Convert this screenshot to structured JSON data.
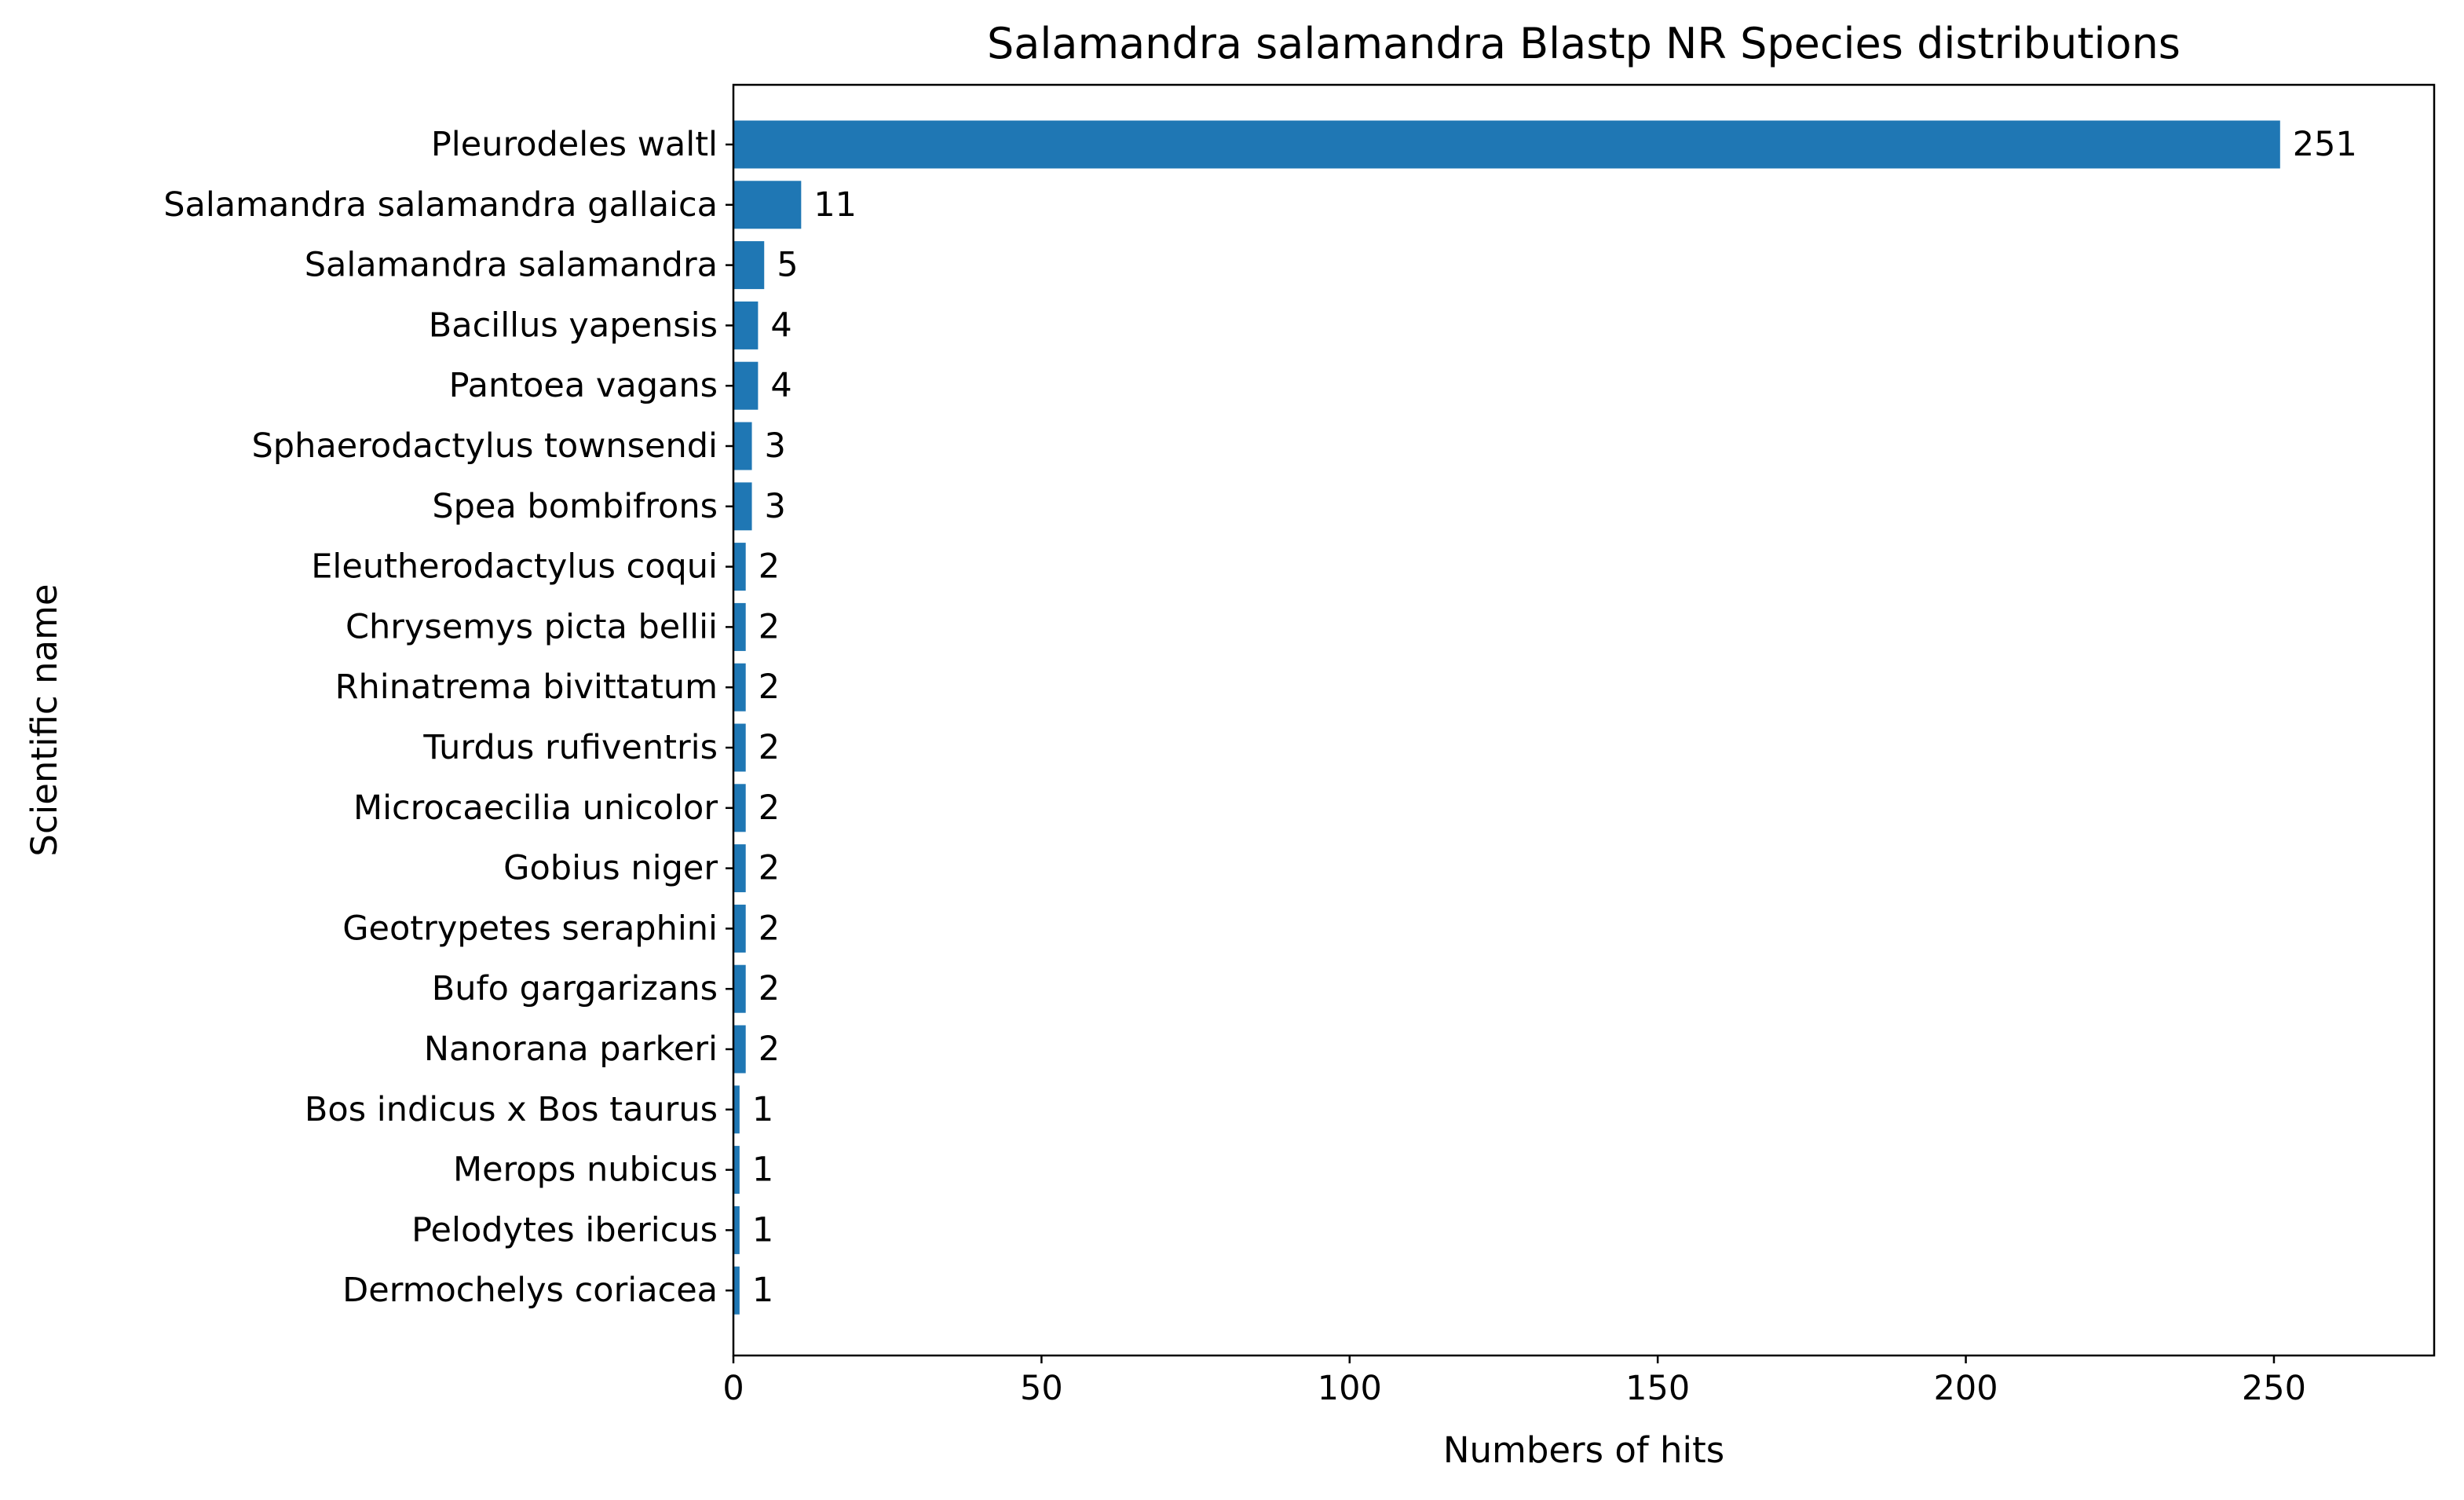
{
  "chart_data": {
    "type": "bar",
    "orientation": "horizontal",
    "title": "Salamandra salamandra Blastp NR Species distributions",
    "xlabel": "Numbers of hits",
    "ylabel": "Scientific name",
    "xlim": [
      0,
      276
    ],
    "xticks": [
      0,
      50,
      100,
      150,
      200,
      250
    ],
    "grid": false,
    "legend": "none",
    "bar_color": "#1f77b4",
    "categories": [
      "Pleurodeles waltl",
      "Salamandra salamandra gallaica",
      "Salamandra salamandra",
      "Bacillus yapensis",
      "Pantoea vagans",
      "Sphaerodactylus townsendi",
      "Spea bombifrons",
      "Eleutherodactylus coqui",
      "Chrysemys picta bellii",
      "Rhinatrema bivittatum",
      "Turdus rufiventris",
      "Microcaecilia unicolor",
      "Gobius niger",
      "Geotrypetes seraphini",
      "Bufo gargarizans",
      "Nanorana parkeri",
      "Bos indicus x Bos taurus",
      "Merops nubicus",
      "Pelodytes ibericus",
      "Dermochelys coriacea"
    ],
    "values": [
      251,
      11,
      5,
      4,
      4,
      3,
      3,
      2,
      2,
      2,
      2,
      2,
      2,
      2,
      2,
      2,
      1,
      1,
      1,
      1
    ]
  }
}
